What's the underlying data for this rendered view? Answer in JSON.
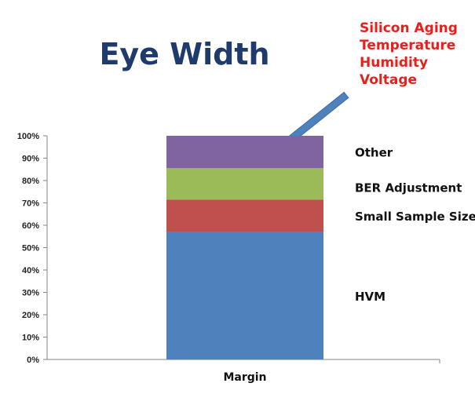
{
  "chart_data": {
    "type": "bar",
    "stacked": true,
    "title": "Eye Width",
    "categories": [
      "Margin"
    ],
    "yticks": [
      "0%",
      "10%",
      "20%",
      "30%",
      "40%",
      "50%",
      "60%",
      "70%",
      "80%",
      "90%",
      "100%"
    ],
    "ylim": [
      0,
      100
    ],
    "series": [
      {
        "name": "HVM",
        "values": [
          57
        ],
        "color": "#4f81bd"
      },
      {
        "name": "Small Sample Size",
        "values": [
          14.5
        ],
        "color": "#c0504d"
      },
      {
        "name": "BER Adjustment",
        "values": [
          14
        ],
        "color": "#9bbb59"
      },
      {
        "name": "Other",
        "values": [
          14.5
        ],
        "color": "#8064a2"
      }
    ],
    "annotation": {
      "lines": [
        "Silicon Aging",
        "Temperature",
        "Humidity",
        "Voltage"
      ],
      "color": "#e8201c",
      "arrow_color": "#4f81bd",
      "points_to": "Other"
    }
  }
}
